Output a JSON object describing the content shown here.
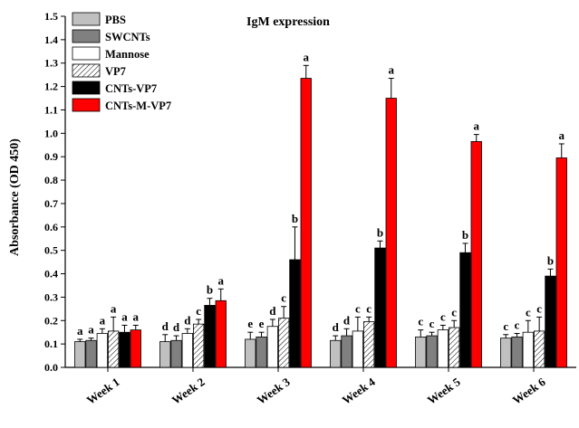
{
  "chart_data": {
    "type": "bar",
    "title": "IgM expression",
    "xlabel": "",
    "ylabel": "Absorbance (OD 450)",
    "ylim": [
      0,
      1.5
    ],
    "yticks": [
      0.0,
      0.1,
      0.2,
      0.3,
      0.4,
      0.5,
      0.6,
      0.7,
      0.8,
      0.9,
      1.0,
      1.1,
      1.2,
      1.3,
      1.4,
      1.5
    ],
    "grid": false,
    "legend_position": "top-left",
    "categories": [
      "Week 1",
      "Week 2",
      "Week 3",
      "Week 4",
      "Week 5",
      "Week 6"
    ],
    "series": [
      {
        "name": "PBS",
        "color": "#c0c0c0",
        "pattern": "solid",
        "values": [
          0.11,
          0.11,
          0.12,
          0.115,
          0.13,
          0.125
        ],
        "errors": [
          0.01,
          0.03,
          0.03,
          0.02,
          0.03,
          0.015
        ],
        "labels": [
          "a",
          "d",
          "e",
          "d",
          "c",
          "c"
        ]
      },
      {
        "name": "SWCNTs",
        "color": "#808080",
        "pattern": "solid",
        "values": [
          0.115,
          0.115,
          0.13,
          0.135,
          0.135,
          0.13
        ],
        "errors": [
          0.01,
          0.02,
          0.02,
          0.03,
          0.015,
          0.015
        ],
        "labels": [
          "a",
          "d",
          "e",
          "d",
          "c",
          "c"
        ]
      },
      {
        "name": "Mannose",
        "color": "#ffffff",
        "pattern": "solid",
        "values": [
          0.145,
          0.145,
          0.175,
          0.155,
          0.16,
          0.15
        ],
        "errors": [
          0.02,
          0.02,
          0.03,
          0.06,
          0.02,
          0.05
        ],
        "labels": [
          "a",
          "d",
          "d",
          "c",
          "c",
          "c"
        ]
      },
      {
        "name": "VP7",
        "color": "#ffffff",
        "pattern": "hatch",
        "values": [
          0.155,
          0.185,
          0.21,
          0.195,
          0.17,
          0.155
        ],
        "errors": [
          0.06,
          0.02,
          0.05,
          0.02,
          0.03,
          0.06
        ],
        "labels": [
          "a",
          "c",
          "c",
          "c",
          "c",
          "c"
        ]
      },
      {
        "name": "CNTs-VP7",
        "color": "#000000",
        "pattern": "solid",
        "values": [
          0.15,
          0.265,
          0.46,
          0.51,
          0.49,
          0.39
        ],
        "errors": [
          0.03,
          0.03,
          0.14,
          0.03,
          0.04,
          0.03
        ],
        "labels": [
          "a",
          "b",
          "b",
          "b",
          "b",
          "b"
        ]
      },
      {
        "name": "CNTs-M-VP7",
        "color": "#ff0000",
        "pattern": "solid",
        "values": [
          0.16,
          0.285,
          1.235,
          1.15,
          0.965,
          0.895
        ],
        "errors": [
          0.02,
          0.05,
          0.055,
          0.085,
          0.03,
          0.06
        ],
        "labels": [
          "a",
          "a",
          "a",
          "a",
          "a",
          "a"
        ]
      }
    ]
  }
}
